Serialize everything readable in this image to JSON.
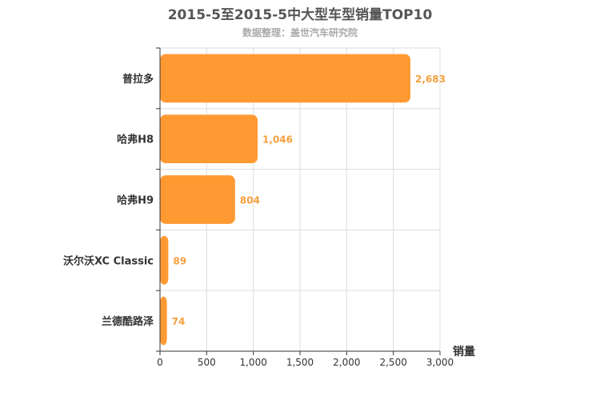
{
  "chart_data": {
    "type": "bar",
    "orientation": "horizontal",
    "title": "2015-5至2015-5中大型车型销量TOP10",
    "subtitle": "数据整理：盖世汽车研究院",
    "categories": [
      "普拉多",
      "哈弗H8",
      "哈弗H9",
      "沃尔沃XC Classic",
      "兰德酷路泽"
    ],
    "values": [
      2683,
      1046,
      804,
      89,
      74
    ],
    "value_labels": [
      "2,683",
      "1,046",
      "804",
      "89",
      "74"
    ],
    "xlabel": "销量",
    "xlim": [
      0,
      3000
    ],
    "xticks": [
      0,
      500,
      1000,
      1500,
      2000,
      2500,
      3000
    ],
    "xtick_labels": [
      "0",
      "500",
      "1,000",
      "1,500",
      "2,000",
      "2,500",
      "3,000"
    ],
    "grid": true,
    "bar_color": "#ff9a33",
    "label_color": "#f5a03e"
  }
}
